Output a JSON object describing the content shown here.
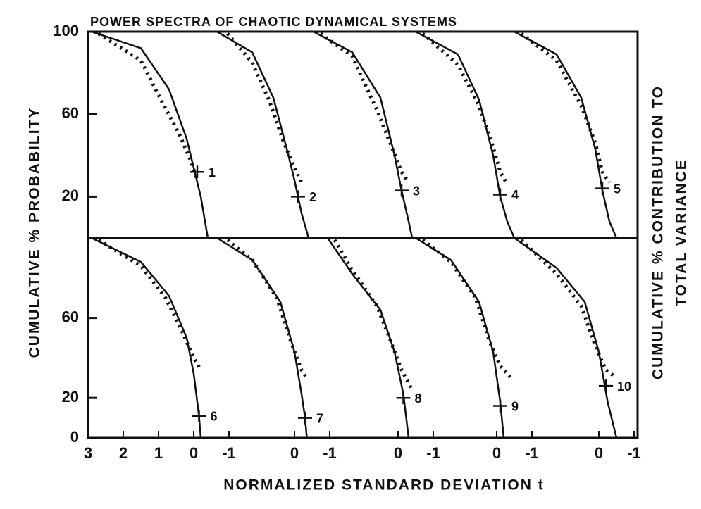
{
  "chart_data": {
    "type": "line",
    "title": "POWER SPECTRA OF CHAOTIC DYNAMICAL SYSTEMS",
    "x_label": "NORMALIZED STANDARD DEVIATION  t",
    "y_label": "CUMULATIVE % PROBABILITY",
    "y2_label": [
      "CUMULATIVE % CONTRIBUTION TO",
      "TOTAL VARIANCE"
    ],
    "ylim": [
      0,
      100
    ],
    "columns": [
      {
        "xlim": [
          3,
          -1
        ],
        "xticks": [
          3,
          2,
          1,
          0,
          -1
        ]
      },
      {
        "xlim": [
          2,
          -1
        ],
        "xticks": [
          0,
          -1
        ]
      },
      {
        "xlim": [
          2,
          -1
        ],
        "xticks": [
          0,
          -1
        ]
      },
      {
        "xlim": [
          2,
          -1
        ],
        "xticks": [
          0,
          -1
        ]
      },
      {
        "xlim": [
          2,
          -1
        ],
        "xticks": [
          0,
          -1
        ]
      }
    ],
    "panels": [
      {
        "yticks": [
          20,
          60,
          100
        ],
        "series": [
          {
            "name": "1",
            "x": [
              2.9,
              1.5,
              0.7,
              0.2,
              0,
              -0.2,
              -0.4
            ],
            "values": [
              100,
              92,
              72,
              48,
              34,
              20,
              0
            ],
            "dots_x": [
              2.7,
              1.5,
              0.9,
              0.4,
              0.1,
              -0.1
            ],
            "dots_values": [
              99,
              86,
              66,
              50,
              38,
              28
            ],
            "marker": [
              -0.1,
              32
            ]
          },
          {
            "name": "2",
            "x": [
              2.2,
              1.2,
              0.6,
              0.2,
              0,
              -0.2,
              -0.4
            ],
            "values": [
              100,
              90,
              68,
              42,
              28,
              12,
              0
            ],
            "dots_x": [
              1.9,
              1.2,
              0.7,
              0.3,
              0,
              -0.2
            ],
            "dots_values": [
              99,
              85,
              66,
              46,
              34,
              27
            ],
            "marker": [
              -0.1,
              20
            ]
          },
          {
            "name": "3",
            "x": [
              2.4,
              1.3,
              0.5,
              0.1,
              -0.1,
              -0.3,
              -0.4
            ],
            "values": [
              100,
              90,
              68,
              40,
              23,
              8,
              0
            ],
            "dots_x": [
              2.2,
              1.3,
              0.6,
              0.2,
              -0.1,
              -0.3
            ],
            "dots_values": [
              99,
              88,
              62,
              45,
              32,
              27
            ],
            "marker": [
              -0.1,
              23
            ]
          },
          {
            "name": "4",
            "x": [
              2.3,
              1.1,
              0.5,
              0.1,
              -0.1,
              -0.3,
              -0.5
            ],
            "values": [
              100,
              89,
              67,
              40,
              20,
              8,
              0
            ],
            "dots_x": [
              2.1,
              1.1,
              0.5,
              0.1,
              -0.1,
              -0.3
            ],
            "dots_values": [
              99,
              84,
              64,
              44,
              32,
              26
            ],
            "marker": [
              -0.1,
              21
            ]
          },
          {
            "name": "5",
            "x": [
              2.4,
              1.2,
              0.5,
              0.1,
              -0.1,
              -0.3,
              -0.5
            ],
            "values": [
              100,
              89,
              68,
              43,
              23,
              8,
              0
            ],
            "dots_x": [
              2.2,
              1.2,
              0.5,
              0.1,
              -0.1,
              -0.3
            ],
            "dots_values": [
              99,
              86,
              64,
              46,
              32,
              27
            ],
            "marker": [
              -0.1,
              24
            ]
          }
        ]
      },
      {
        "yticks": [
          0,
          20,
          60
        ],
        "series": [
          {
            "name": "6",
            "x": [
              2.9,
              1.5,
              0.7,
              0.2,
              0,
              -0.15,
              -0.2
            ],
            "values": [
              100,
              88,
              71,
              50,
              32,
              11,
              0
            ],
            "dots_x": [
              2.7,
              1.5,
              0.8,
              0.3,
              0,
              -0.2
            ],
            "dots_values": [
              99,
              86,
              70,
              52,
              40,
              34
            ],
            "marker": [
              -0.15,
              11
            ]
          },
          {
            "name": "7",
            "x": [
              2.2,
              1.2,
              0.4,
              0,
              -0.2,
              -0.3,
              -0.35
            ],
            "values": [
              100,
              89,
              68,
              43,
              22,
              10,
              0
            ],
            "dots_x": [
              1.9,
              1.2,
              0.5,
              0.1,
              -0.2,
              -0.35
            ],
            "dots_values": [
              99,
              89,
              70,
              48,
              34,
              30
            ],
            "marker": [
              -0.3,
              10
            ]
          },
          {
            "name": "8",
            "x": [
              2.0,
              1.3,
              0.5,
              0.1,
              -0.15,
              -0.3
            ],
            "values": [
              100,
              82,
              64,
              43,
              22,
              0
            ],
            "dots_x": [
              1.8,
              1.3,
              0.6,
              0.2,
              -0.1,
              -0.4
            ],
            "dots_values": [
              99,
              84,
              66,
              48,
              34,
              24
            ],
            "marker": [
              -0.15,
              20
            ]
          },
          {
            "name": "9",
            "x": [
              2.3,
              1.3,
              0.5,
              0.1,
              -0.1,
              -0.2
            ],
            "values": [
              100,
              89,
              68,
              43,
              18,
              0
            ],
            "dots_x": [
              2.1,
              1.3,
              0.6,
              0.2,
              -0.1,
              -0.4
            ],
            "dots_values": [
              99,
              88,
              70,
              48,
              36,
              30
            ],
            "marker": [
              -0.1,
              16
            ]
          },
          {
            "name": "10",
            "x": [
              2.4,
              1.2,
              0.4,
              0,
              -0.25,
              -0.5
            ],
            "values": [
              100,
              85,
              68,
              43,
              18,
              0
            ],
            "dots_x": [
              2.2,
              1.2,
              0.5,
              0.1,
              -0.2,
              -0.5
            ],
            "dots_values": [
              99,
              82,
              66,
              46,
              34,
              30
            ],
            "marker": [
              -0.2,
              26
            ]
          }
        ]
      }
    ]
  }
}
